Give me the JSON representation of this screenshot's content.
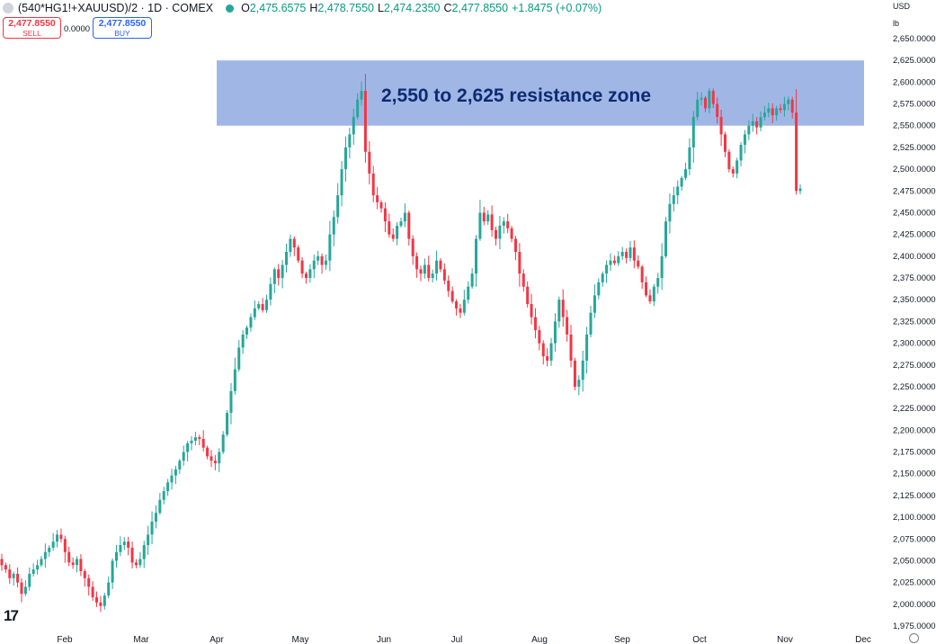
{
  "header": {
    "title": "(540*HG1!+XAUUSD)/2 · 1D · COMEX",
    "open_key": "O",
    "open": "2,475.6575",
    "high_key": "H",
    "high": "2,478.7550",
    "low_key": "L",
    "low": "2,474.2350",
    "close_key": "C",
    "close": "2,477.8550",
    "change": "+1.8475 (+0.07%)"
  },
  "trade": {
    "sell_price": "2,477.8550",
    "sell_label": "SELL",
    "spread": "0.0000",
    "buy_price": "2,477.8550",
    "buy_label": "BUY"
  },
  "axis": {
    "currency": "USD",
    "unit": "lb"
  },
  "logo": "17",
  "colors": {
    "up": "#26a69a",
    "down": "#f23645",
    "zone": "#7b9bdc",
    "zone_text": "#0d2b70"
  },
  "chart_data": {
    "type": "candlestick",
    "title": "",
    "ylim": [
      1975,
      2650
    ],
    "yticks": [
      1975,
      2000,
      2025,
      2050,
      2075,
      2100,
      2125,
      2150,
      2175,
      2200,
      2225,
      2250,
      2275,
      2300,
      2325,
      2350,
      2375,
      2400,
      2425,
      2450,
      2475,
      2500,
      2525,
      2550,
      2575,
      2600,
      2625,
      2650
    ],
    "ytick_labels": [
      "1,975.0000",
      "2,000.0000",
      "2,025.0000",
      "2,050.0000",
      "2,075.0000",
      "2,100.0000",
      "2,125.0000",
      "2,150.0000",
      "2,175.0000",
      "2,200.0000",
      "2,225.0000",
      "2,250.0000",
      "2,275.0000",
      "2,300.0000",
      "2,325.0000",
      "2,350.0000",
      "2,375.0000",
      "2,400.0000",
      "2,425.0000",
      "2,450.0000",
      "2,475.0000",
      "2,500.0000",
      "2,525.0000",
      "2,550.0000",
      "2,575.0000",
      "2,600.0000",
      "2,625.0000",
      "2,650.0000"
    ],
    "xticks": [
      "Feb",
      "Mar",
      "Apr",
      "May",
      "Jun",
      "Jul",
      "Aug",
      "Sep",
      "Oct",
      "Nov",
      "Dec"
    ],
    "annotation": {
      "text": "2,550 to 2,625 resistance zone",
      "y_from": 2550,
      "y_to": 2625
    },
    "closes": [
      2045,
      2040,
      2030,
      2035,
      2025,
      2012,
      2020,
      2035,
      2040,
      2045,
      2052,
      2060,
      2065,
      2072,
      2080,
      2075,
      2060,
      2048,
      2045,
      2052,
      2038,
      2030,
      2020,
      2008,
      2002,
      1998,
      2010,
      2025,
      2050,
      2060,
      2068,
      2072,
      2065,
      2048,
      2045,
      2052,
      2068,
      2080,
      2095,
      2105,
      2120,
      2130,
      2140,
      2148,
      2155,
      2165,
      2175,
      2185,
      2188,
      2192,
      2190,
      2180,
      2170,
      2165,
      2162,
      2175,
      2195,
      2220,
      2245,
      2270,
      2295,
      2310,
      2318,
      2330,
      2340,
      2345,
      2338,
      2350,
      2368,
      2385,
      2375,
      2390,
      2405,
      2420,
      2410,
      2395,
      2380,
      2375,
      2385,
      2395,
      2400,
      2390,
      2395,
      2425,
      2445,
      2470,
      2500,
      2525,
      2540,
      2560,
      2580,
      2590,
      2520,
      2495,
      2470,
      2462,
      2455,
      2440,
      2425,
      2420,
      2435,
      2440,
      2450,
      2420,
      2400,
      2385,
      2380,
      2390,
      2375,
      2380,
      2395,
      2385,
      2372,
      2360,
      2348,
      2340,
      2335,
      2350,
      2365,
      2380,
      2420,
      2450,
      2440,
      2448,
      2430,
      2420,
      2435,
      2440,
      2432,
      2420,
      2405,
      2380,
      2365,
      2345,
      2330,
      2315,
      2300,
      2285,
      2280,
      2300,
      2325,
      2350,
      2330,
      2310,
      2280,
      2250,
      2258,
      2280,
      2310,
      2335,
      2355,
      2370,
      2380,
      2390,
      2395,
      2392,
      2400,
      2405,
      2398,
      2410,
      2395,
      2388,
      2370,
      2355,
      2348,
      2365,
      2375,
      2400,
      2440,
      2460,
      2470,
      2480,
      2490,
      2500,
      2525,
      2560,
      2580,
      2582,
      2570,
      2590,
      2575,
      2560,
      2540,
      2520,
      2500,
      2495,
      2510,
      2528,
      2540,
      2550,
      2555,
      2548,
      2560,
      2565,
      2570,
      2562,
      2570,
      2568,
      2575,
      2580,
      2565,
      2475,
      2477.8
    ],
    "last": {
      "open": 2475.6575,
      "high": 2478.755,
      "low": 2474.235,
      "close": 2477.855
    }
  }
}
